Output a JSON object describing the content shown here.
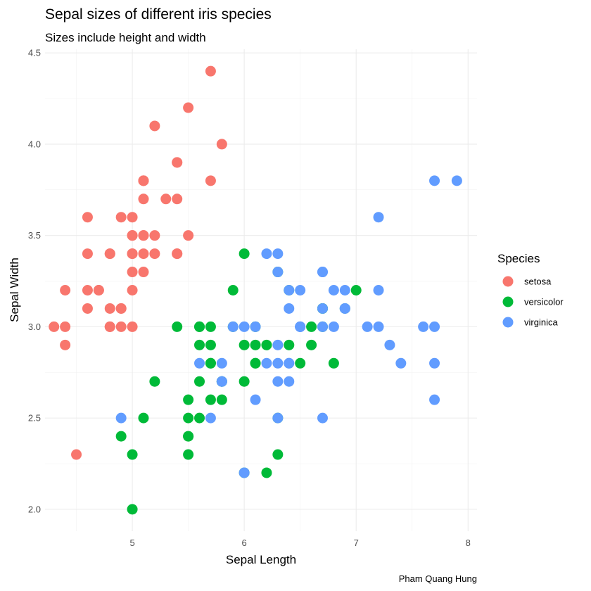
{
  "chart_data": {
    "type": "scatter",
    "title": "Sepal sizes of different iris species",
    "subtitle": "Sizes include height and width",
    "xlabel": "Sepal Length",
    "ylabel": "Sepal Width",
    "caption": "Pham Quang Hung",
    "xlim": [
      4.22,
      8.08
    ],
    "ylim": [
      1.88,
      4.52
    ],
    "x_ticks": [
      5,
      6,
      7,
      8
    ],
    "x_tick_labels": [
      "5",
      "6",
      "7",
      "8"
    ],
    "y_ticks": [
      2.0,
      2.5,
      3.0,
      3.5,
      4.0,
      4.5
    ],
    "y_tick_labels": [
      "2.0",
      "2.5",
      "3.0",
      "3.5",
      "4.0",
      "4.5"
    ],
    "grid": true,
    "legend": {
      "title": "Species",
      "position": "right"
    },
    "series": [
      {
        "name": "setosa",
        "color": "#F8766D",
        "points": [
          [
            5.1,
            3.5
          ],
          [
            4.9,
            3.0
          ],
          [
            4.7,
            3.2
          ],
          [
            4.6,
            3.1
          ],
          [
            5.0,
            3.6
          ],
          [
            5.4,
            3.9
          ],
          [
            4.6,
            3.4
          ],
          [
            5.0,
            3.4
          ],
          [
            4.4,
            2.9
          ],
          [
            4.9,
            3.1
          ],
          [
            5.4,
            3.7
          ],
          [
            4.8,
            3.4
          ],
          [
            4.8,
            3.0
          ],
          [
            4.3,
            3.0
          ],
          [
            5.8,
            4.0
          ],
          [
            5.7,
            4.4
          ],
          [
            5.4,
            3.9
          ],
          [
            5.1,
            3.5
          ],
          [
            5.7,
            3.8
          ],
          [
            5.1,
            3.8
          ],
          [
            5.4,
            3.4
          ],
          [
            5.1,
            3.7
          ],
          [
            4.6,
            3.6
          ],
          [
            5.1,
            3.3
          ],
          [
            4.8,
            3.4
          ],
          [
            5.0,
            3.0
          ],
          [
            5.0,
            3.4
          ],
          [
            5.2,
            3.5
          ],
          [
            5.2,
            3.4
          ],
          [
            4.7,
            3.2
          ],
          [
            4.8,
            3.1
          ],
          [
            5.4,
            3.4
          ],
          [
            5.2,
            4.1
          ],
          [
            5.5,
            4.2
          ],
          [
            4.9,
            3.1
          ],
          [
            5.0,
            3.2
          ],
          [
            5.5,
            3.5
          ],
          [
            4.9,
            3.6
          ],
          [
            4.4,
            3.0
          ],
          [
            5.1,
            3.4
          ],
          [
            5.0,
            3.5
          ],
          [
            4.5,
            2.3
          ],
          [
            4.4,
            3.2
          ],
          [
            5.0,
            3.5
          ],
          [
            5.1,
            3.8
          ],
          [
            4.8,
            3.0
          ],
          [
            5.1,
            3.8
          ],
          [
            4.6,
            3.2
          ],
          [
            5.3,
            3.7
          ],
          [
            5.0,
            3.3
          ]
        ]
      },
      {
        "name": "versicolor",
        "color": "#00BA38",
        "points": [
          [
            7.0,
            3.2
          ],
          [
            6.4,
            3.2
          ],
          [
            6.9,
            3.1
          ],
          [
            5.5,
            2.3
          ],
          [
            6.5,
            2.8
          ],
          [
            5.7,
            2.8
          ],
          [
            6.3,
            3.3
          ],
          [
            4.9,
            2.4
          ],
          [
            6.6,
            2.9
          ],
          [
            5.2,
            2.7
          ],
          [
            5.0,
            2.0
          ],
          [
            5.9,
            3.0
          ],
          [
            6.0,
            2.2
          ],
          [
            6.1,
            2.9
          ],
          [
            5.6,
            2.9
          ],
          [
            6.7,
            3.1
          ],
          [
            5.6,
            3.0
          ],
          [
            5.8,
            2.7
          ],
          [
            6.2,
            2.2
          ],
          [
            5.6,
            2.5
          ],
          [
            5.9,
            3.2
          ],
          [
            6.1,
            2.8
          ],
          [
            6.3,
            2.5
          ],
          [
            6.1,
            2.8
          ],
          [
            6.4,
            2.9
          ],
          [
            6.6,
            3.0
          ],
          [
            6.8,
            2.8
          ],
          [
            6.7,
            3.0
          ],
          [
            6.0,
            2.9
          ],
          [
            5.7,
            2.6
          ],
          [
            5.5,
            2.4
          ],
          [
            5.5,
            2.4
          ],
          [
            5.8,
            2.7
          ],
          [
            6.0,
            2.7
          ],
          [
            5.4,
            3.0
          ],
          [
            6.0,
            3.4
          ],
          [
            6.7,
            3.1
          ],
          [
            6.3,
            2.3
          ],
          [
            5.6,
            3.0
          ],
          [
            5.5,
            2.5
          ],
          [
            5.5,
            2.6
          ],
          [
            6.1,
            3.0
          ],
          [
            5.8,
            2.6
          ],
          [
            5.0,
            2.3
          ],
          [
            5.6,
            2.7
          ],
          [
            5.7,
            3.0
          ],
          [
            5.7,
            2.9
          ],
          [
            6.2,
            2.9
          ],
          [
            5.1,
            2.5
          ],
          [
            5.7,
            2.8
          ]
        ]
      },
      {
        "name": "virginica",
        "color": "#619CFF",
        "points": [
          [
            6.3,
            3.3
          ],
          [
            5.8,
            2.7
          ],
          [
            7.1,
            3.0
          ],
          [
            6.3,
            2.9
          ],
          [
            6.5,
            3.0
          ],
          [
            7.6,
            3.0
          ],
          [
            4.9,
            2.5
          ],
          [
            7.3,
            2.9
          ],
          [
            6.7,
            2.5
          ],
          [
            7.2,
            3.6
          ],
          [
            6.5,
            3.2
          ],
          [
            6.4,
            2.7
          ],
          [
            6.8,
            3.0
          ],
          [
            5.7,
            2.5
          ],
          [
            5.8,
            2.8
          ],
          [
            6.4,
            3.2
          ],
          [
            6.5,
            3.0
          ],
          [
            7.7,
            3.8
          ],
          [
            7.7,
            2.6
          ],
          [
            6.0,
            2.2
          ],
          [
            6.9,
            3.2
          ],
          [
            5.6,
            2.8
          ],
          [
            7.7,
            2.8
          ],
          [
            6.3,
            2.7
          ],
          [
            6.7,
            3.3
          ],
          [
            7.2,
            3.2
          ],
          [
            6.2,
            2.8
          ],
          [
            6.1,
            3.0
          ],
          [
            6.4,
            2.8
          ],
          [
            7.2,
            3.0
          ],
          [
            7.4,
            2.8
          ],
          [
            7.9,
            3.8
          ],
          [
            6.4,
            2.8
          ],
          [
            6.3,
            2.8
          ],
          [
            6.1,
            2.6
          ],
          [
            7.7,
            3.0
          ],
          [
            6.3,
            3.4
          ],
          [
            6.4,
            3.1
          ],
          [
            6.0,
            3.0
          ],
          [
            6.9,
            3.1
          ],
          [
            6.7,
            3.1
          ],
          [
            6.9,
            3.1
          ],
          [
            5.8,
            2.7
          ],
          [
            6.8,
            3.2
          ],
          [
            6.7,
            3.3
          ],
          [
            6.7,
            3.0
          ],
          [
            6.3,
            2.5
          ],
          [
            6.5,
            3.0
          ],
          [
            6.2,
            3.4
          ],
          [
            5.9,
            3.0
          ]
        ]
      }
    ]
  }
}
